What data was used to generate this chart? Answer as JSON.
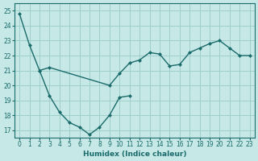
{
  "xlabel": "Humidex (Indice chaleur)",
  "background_color": "#c6e8e6",
  "grid_color": "#9fcfcb",
  "line_color": "#1a6b6b",
  "xlim": [
    -0.5,
    23.5
  ],
  "ylim": [
    16.5,
    25.5
  ],
  "yticks": [
    17,
    18,
    19,
    20,
    21,
    22,
    23,
    24,
    25
  ],
  "xticks": [
    0,
    1,
    2,
    3,
    4,
    5,
    6,
    7,
    8,
    9,
    10,
    11,
    12,
    13,
    14,
    15,
    16,
    17,
    18,
    19,
    20,
    21,
    22,
    23
  ],
  "line1_x": [
    0,
    1,
    2,
    3,
    4,
    5,
    6,
    7,
    8,
    9,
    10,
    11
  ],
  "line1_y": [
    24.8,
    22.7,
    21.0,
    19.3,
    18.2,
    17.5,
    17.2,
    16.7,
    17.2,
    18.0,
    19.2,
    19.3
  ],
  "line2_x": [
    2,
    3,
    9,
    10,
    11,
    12,
    13,
    14,
    15,
    16,
    17,
    18,
    19,
    20,
    21,
    22,
    23
  ],
  "line2_y": [
    21.0,
    21.2,
    20.0,
    20.8,
    21.5,
    21.7,
    22.2,
    22.1,
    21.3,
    21.4,
    22.2,
    22.5,
    22.8,
    23.0,
    22.5,
    22.0,
    22.0
  ],
  "line2_gap_start": 3,
  "line2_gap_end": 9
}
